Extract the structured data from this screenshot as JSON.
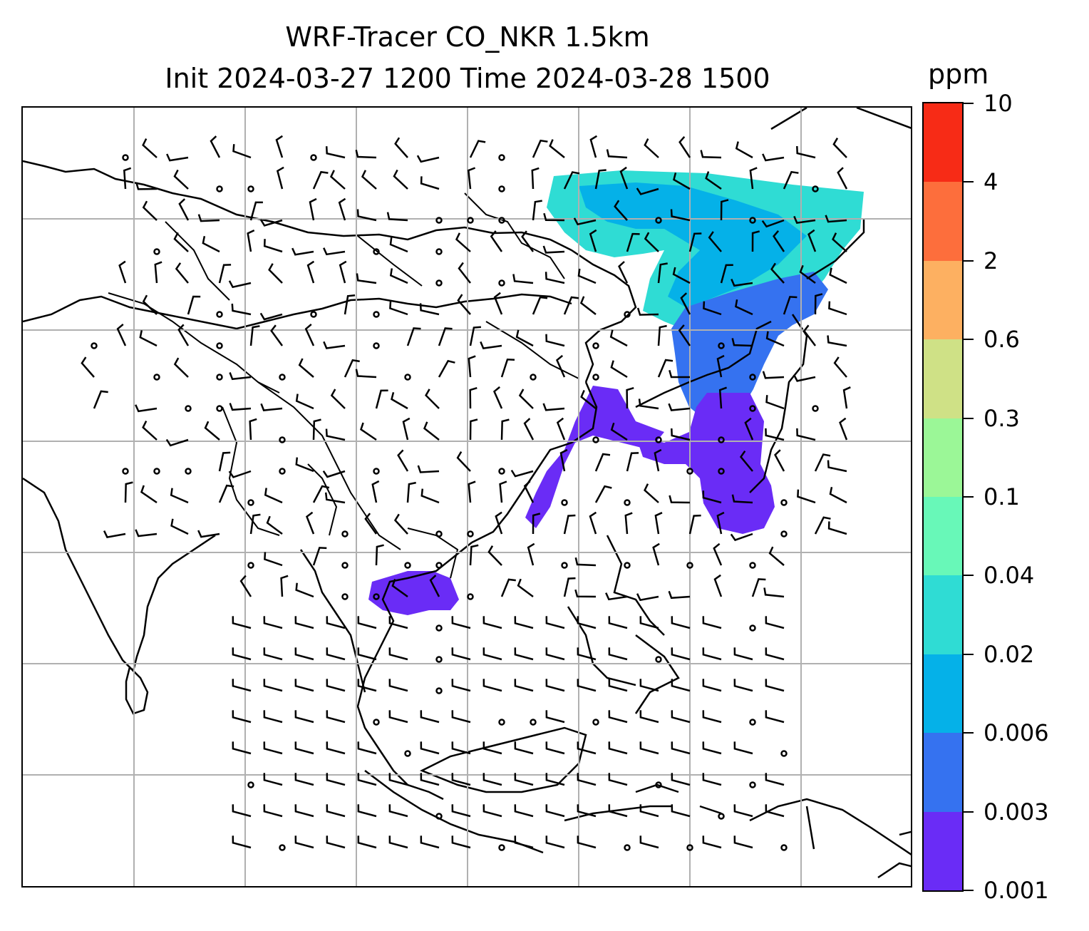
{
  "title": {
    "line1": "WRF-Tracer CO_NKR 1.5km",
    "line2": "Init 2024-03-27 1200 Time 2024-03-28 1500"
  },
  "colorbar": {
    "unit": "ppm",
    "ticks": [
      "0.001",
      "0.003",
      "0.006",
      "0.02",
      "0.04",
      "0.1",
      "0.3",
      "0.6",
      "2",
      "4",
      "10"
    ],
    "colors": [
      "#6a2cf6",
      "#3572f0",
      "#05b1e8",
      "#2fdcd4",
      "#68f8b8",
      "#9bf797",
      "#cfe186",
      "#fdb061",
      "#fd6e3c",
      "#f72b16"
    ]
  },
  "map": {
    "gridlines": "on",
    "features": [
      "coastlines",
      "country borders",
      "wind barbs",
      "CO tracer concentration"
    ]
  }
}
